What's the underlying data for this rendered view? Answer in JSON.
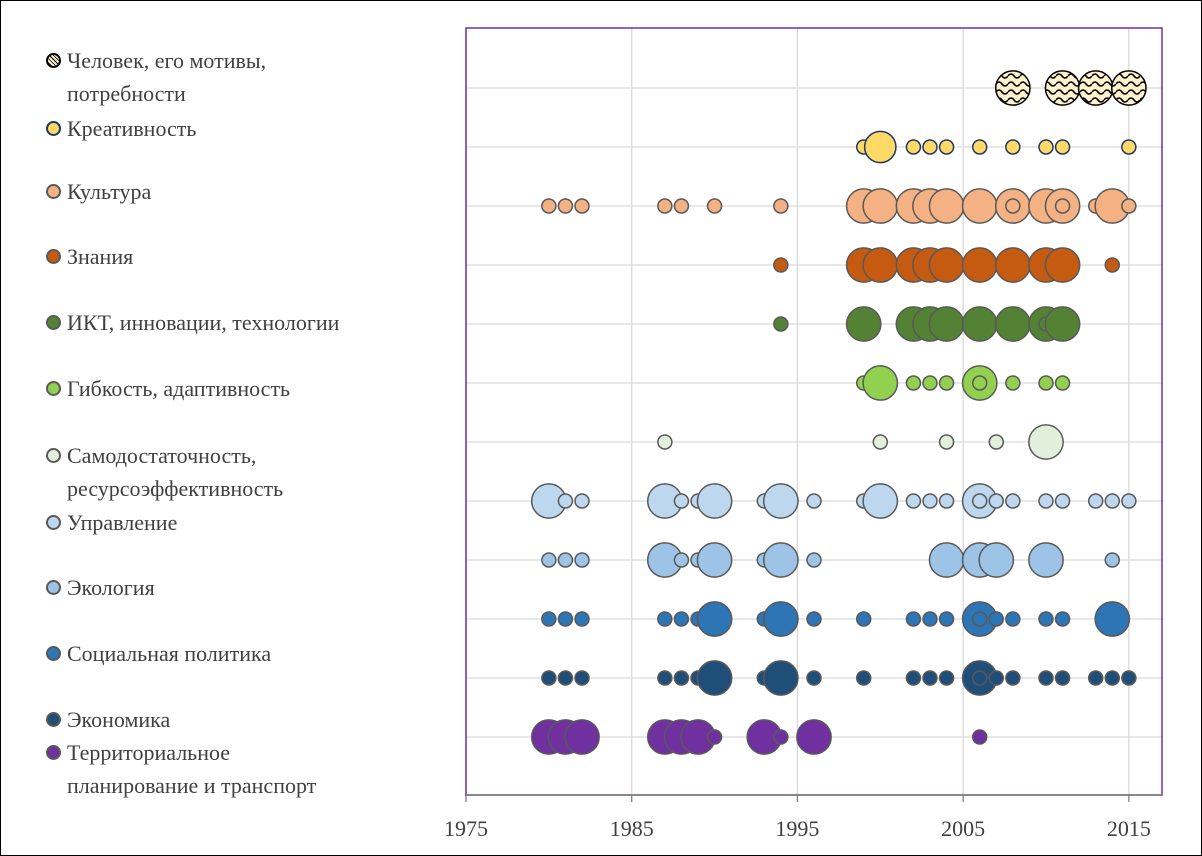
{
  "chart_data": {
    "type": "bubble",
    "xlim": [
      1975,
      2017
    ],
    "xticks": [
      1975,
      1985,
      1995,
      2005,
      2015
    ],
    "grid": true,
    "series": [
      {
        "name": "Человек, его мотивы, потребности",
        "color": "#fff2cc",
        "edge": "#000000",
        "pattern": "waves",
        "x": [
          2008,
          2011,
          2013,
          2015
        ],
        "sizes": [
          6,
          6,
          6,
          6
        ]
      },
      {
        "name": "Креативность",
        "color": "#ffd966",
        "edge": "#1f3864",
        "x": [
          1999,
          2000,
          2002,
          2003,
          2004,
          2006,
          2008,
          2010,
          2011,
          2015
        ],
        "sizes": [
          1,
          5,
          1,
          1,
          1,
          1,
          1,
          1,
          1,
          1
        ]
      },
      {
        "name": "Культура",
        "color": "#f4b183",
        "edge": "#595959",
        "x": [
          1980,
          1981,
          1982,
          1987,
          1988,
          1990,
          1994,
          1999,
          2000,
          2002,
          2003,
          2004,
          2006,
          2008,
          2008,
          2010,
          2011,
          2011,
          2013,
          2014,
          2015
        ],
        "sizes": [
          1,
          1,
          1,
          1,
          1,
          1,
          1,
          6,
          6,
          6,
          6,
          6,
          6,
          6,
          1,
          6,
          6,
          1,
          1,
          6,
          1
        ]
      },
      {
        "name": "Знания",
        "color": "#c55a11",
        "edge": "#595959",
        "x": [
          1994,
          1999,
          2000,
          2002,
          2003,
          2004,
          2006,
          2008,
          2010,
          2011,
          2014
        ],
        "sizes": [
          1,
          6,
          6,
          6,
          6,
          6,
          6,
          6,
          6,
          6,
          1
        ]
      },
      {
        "name": "ИКТ, инновации, технологии",
        "color": "#548235",
        "edge": "#595959",
        "x": [
          1994,
          1999,
          2002,
          2003,
          2004,
          2006,
          2008,
          2010,
          2010,
          2011
        ],
        "sizes": [
          1,
          6,
          6,
          6,
          6,
          6,
          6,
          6,
          1,
          6
        ]
      },
      {
        "name": "Гибкость, адаптивность",
        "color": "#92d050",
        "edge": "#595959",
        "x": [
          1999,
          2000,
          2002,
          2003,
          2004,
          2006,
          2006,
          2008,
          2010,
          2011
        ],
        "sizes": [
          1,
          6,
          1,
          1,
          1,
          6,
          1,
          1,
          1,
          1
        ]
      },
      {
        "name": "Самодостаточность, ресурсоэффективность",
        "color": "#e2efda",
        "edge": "#595959",
        "x": [
          1987,
          2000,
          2004,
          2007,
          2010
        ],
        "sizes": [
          1,
          1,
          1,
          1,
          6
        ]
      },
      {
        "name": "Управление",
        "color": "#bdd7ee",
        "edge": "#595959",
        "x": [
          1980,
          1981,
          1982,
          1987,
          1988,
          1989,
          1990,
          1993,
          1994,
          1996,
          1999,
          2000,
          2002,
          2003,
          2004,
          2006,
          2006,
          2007,
          2008,
          2010,
          2011,
          2013,
          2014,
          2015
        ],
        "sizes": [
          6,
          1,
          1,
          6,
          1,
          1,
          6,
          1,
          6,
          1,
          1,
          6,
          1,
          1,
          1,
          6,
          1,
          1,
          1,
          1,
          1,
          1,
          1,
          1
        ]
      },
      {
        "name": "Экология",
        "color": "#9dc3e6",
        "edge": "#595959",
        "x": [
          1980,
          1981,
          1982,
          1987,
          1988,
          1989,
          1990,
          1993,
          1994,
          1996,
          2004,
          2006,
          2007,
          2010,
          2014
        ],
        "sizes": [
          1,
          1,
          1,
          6,
          1,
          1,
          6,
          1,
          6,
          1,
          6,
          6,
          6,
          6,
          1
        ]
      },
      {
        "name": "Социальная политика",
        "color": "#2e75b6",
        "edge": "#595959",
        "x": [
          1980,
          1981,
          1982,
          1987,
          1988,
          1989,
          1990,
          1993,
          1994,
          1996,
          1999,
          2002,
          2003,
          2004,
          2006,
          2006,
          2007,
          2008,
          2010,
          2011,
          2014
        ],
        "sizes": [
          1,
          1,
          1,
          1,
          1,
          1,
          6,
          1,
          6,
          1,
          1,
          1,
          1,
          1,
          6,
          1,
          1,
          1,
          1,
          1,
          6
        ]
      },
      {
        "name": "Экономика",
        "color": "#1f4e79",
        "edge": "#595959",
        "x": [
          1980,
          1981,
          1982,
          1987,
          1988,
          1989,
          1990,
          1993,
          1994,
          1996,
          1999,
          2002,
          2003,
          2004,
          2006,
          2006,
          2007,
          2008,
          2010,
          2011,
          2013,
          2014,
          2015
        ],
        "sizes": [
          1,
          1,
          1,
          1,
          1,
          1,
          6,
          1,
          6,
          1,
          1,
          1,
          1,
          1,
          6,
          1,
          1,
          1,
          1,
          1,
          1,
          1,
          1
        ]
      },
      {
        "name": "Территориальное планирование и транспорт",
        "color": "#7030a0",
        "edge": "#595959",
        "x": [
          1980,
          1981,
          1982,
          1987,
          1988,
          1989,
          1990,
          1993,
          1994,
          1996,
          2006
        ],
        "sizes": [
          6,
          6,
          6,
          6,
          6,
          6,
          1,
          6,
          1,
          6,
          1
        ]
      }
    ]
  }
}
